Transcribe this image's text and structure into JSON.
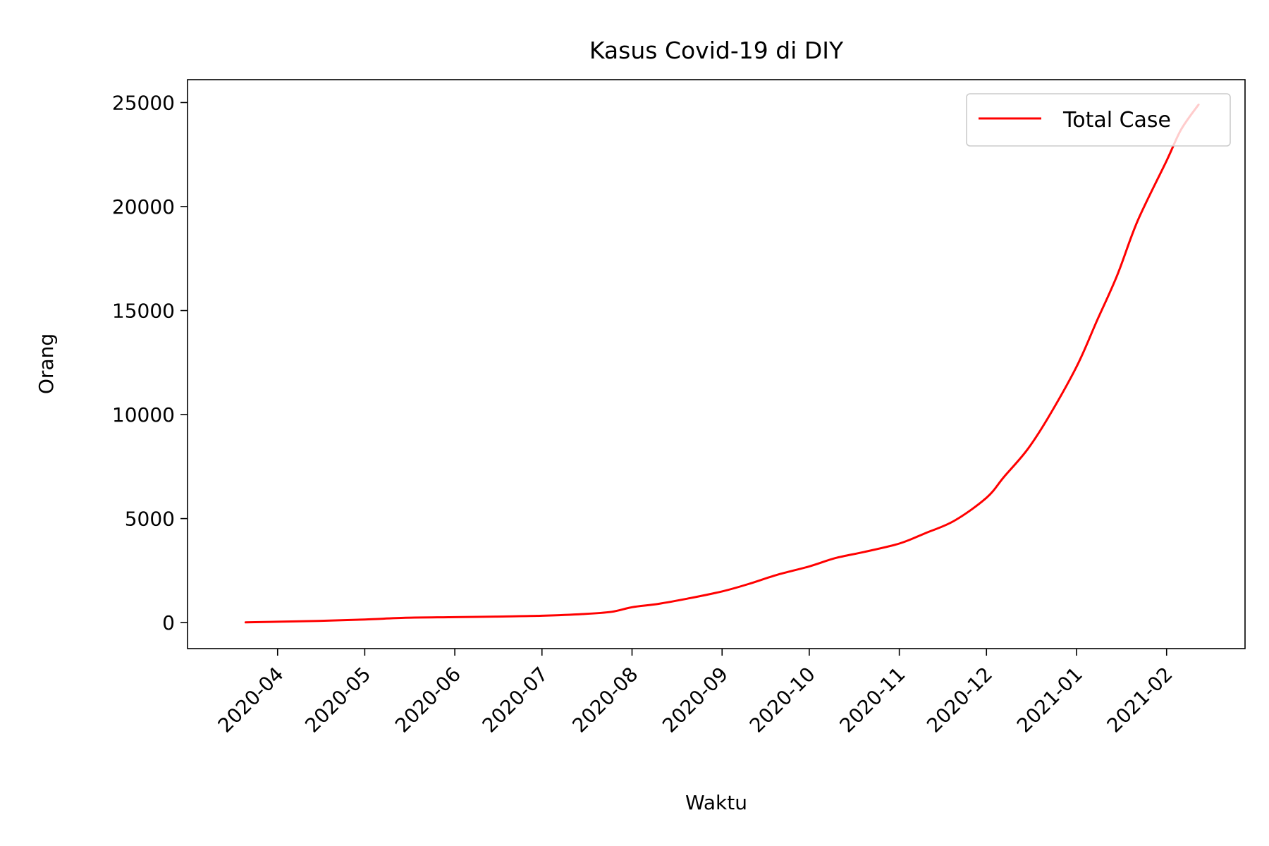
{
  "chart_data": {
    "type": "line",
    "title": "Kasus Covid-19 di DIY",
    "xlabel": "Waktu",
    "ylabel": "Orang",
    "x_ticks": [
      "2020-04-01",
      "2020-05-01",
      "2020-06-01",
      "2020-07-01",
      "2020-08-01",
      "2020-09-01",
      "2020-10-01",
      "2020-11-01",
      "2020-12-01",
      "2021-01-01",
      "2021-02-01"
    ],
    "x_tick_labels": [
      "2020-04",
      "2020-05",
      "2020-06",
      "2020-07",
      "2020-08",
      "2020-09",
      "2020-10",
      "2020-11",
      "2020-12",
      "2021-01",
      "2021-02"
    ],
    "y_ticks": [
      0,
      5000,
      10000,
      15000,
      20000,
      25000
    ],
    "y_tick_labels": [
      "0",
      "5000",
      "10000",
      "15000",
      "20000",
      "25000"
    ],
    "xlim": [
      "2020-03-01",
      "2021-02-28"
    ],
    "ylim": [
      -1250,
      26100
    ],
    "grid": false,
    "legend_position": "upper right",
    "series": [
      {
        "name": "Total Case",
        "color": "#ff0000",
        "x": [
          "2020-03-21",
          "2020-04-01",
          "2020-04-15",
          "2020-05-01",
          "2020-05-15",
          "2020-06-01",
          "2020-06-15",
          "2020-07-01",
          "2020-07-15",
          "2020-07-25",
          "2020-08-01",
          "2020-08-10",
          "2020-08-20",
          "2020-09-01",
          "2020-09-10",
          "2020-09-20",
          "2020-10-01",
          "2020-10-10",
          "2020-10-20",
          "2020-11-01",
          "2020-11-10",
          "2020-11-20",
          "2020-12-01",
          "2020-12-07",
          "2020-12-15",
          "2020-12-22",
          "2021-01-01",
          "2021-01-08",
          "2021-01-15",
          "2021-01-22",
          "2021-02-01",
          "2021-02-06",
          "2021-02-12"
        ],
        "values": [
          10,
          40,
          80,
          150,
          230,
          260,
          290,
          330,
          410,
          520,
          740,
          900,
          1150,
          1500,
          1850,
          2300,
          2700,
          3100,
          3400,
          3800,
          4300,
          4900,
          6000,
          7000,
          8300,
          9800,
          12300,
          14500,
          16700,
          19300,
          22200,
          23700,
          24900
        ]
      }
    ]
  }
}
